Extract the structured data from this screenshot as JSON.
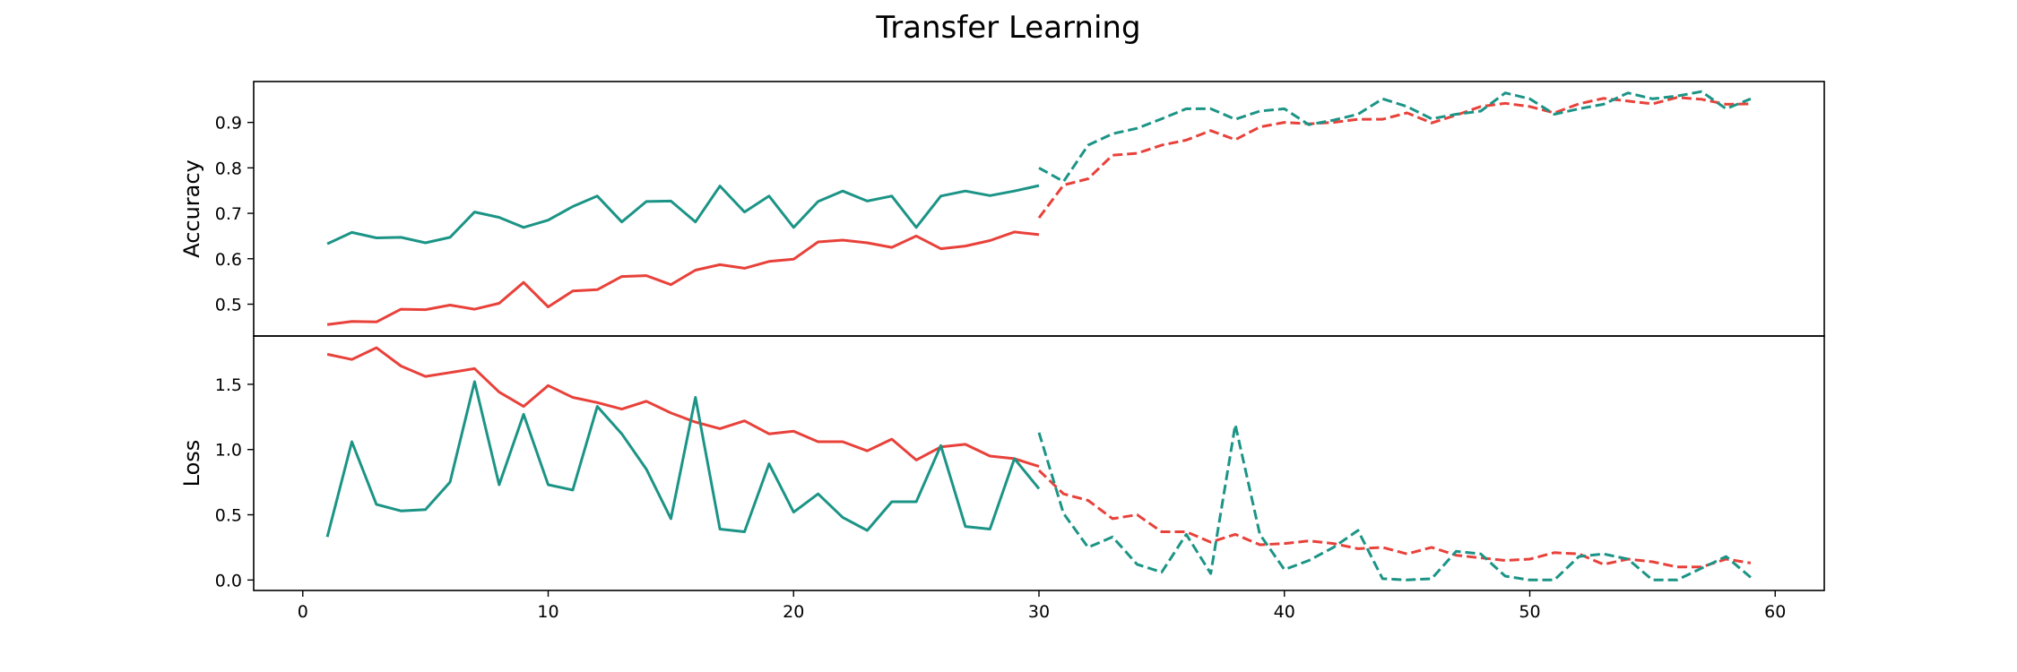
{
  "chart_data": {
    "type": "line",
    "title": "Transfer Learning",
    "colors": {
      "train": "#e8413a",
      "val": "#1b9486"
    },
    "xlim": [
      -2,
      62
    ],
    "xticks": [
      0,
      10,
      20,
      30,
      40,
      50,
      60
    ],
    "panels": [
      {
        "ylabel": "Accuracy",
        "ylim": [
          0.43,
          0.99
        ],
        "yticks": [
          0.5,
          0.6,
          0.7,
          0.8,
          0.9
        ],
        "series": [
          {
            "role": "train",
            "style": "solid",
            "x": [
              1,
              2,
              3,
              4,
              5,
              6,
              7,
              8,
              9,
              10,
              11,
              12,
              13,
              14,
              15,
              16,
              17,
              18,
              19,
              20,
              21,
              22,
              23,
              24,
              25,
              26,
              27,
              28,
              29,
              30
            ],
            "y": [
              0.455,
              0.462,
              0.461,
              0.489,
              0.488,
              0.498,
              0.489,
              0.502,
              0.548,
              0.494,
              0.529,
              0.532,
              0.561,
              0.563,
              0.543,
              0.575,
              0.587,
              0.579,
              0.594,
              0.599,
              0.637,
              0.641,
              0.635,
              0.625,
              0.65,
              0.622,
              0.628,
              0.64,
              0.659,
              0.653
            ]
          },
          {
            "role": "val",
            "style": "solid",
            "x": [
              1,
              2,
              3,
              4,
              5,
              6,
              7,
              8,
              9,
              10,
              11,
              12,
              13,
              14,
              15,
              16,
              17,
              18,
              19,
              20,
              21,
              22,
              23,
              24,
              25,
              26,
              27,
              28,
              29,
              30
            ],
            "y": [
              0.633,
              0.658,
              0.646,
              0.647,
              0.635,
              0.647,
              0.703,
              0.691,
              0.669,
              0.685,
              0.715,
              0.738,
              0.681,
              0.726,
              0.727,
              0.681,
              0.76,
              0.703,
              0.738,
              0.669,
              0.726,
              0.749,
              0.727,
              0.738,
              0.669,
              0.738,
              0.749,
              0.739,
              0.749,
              0.761
            ]
          },
          {
            "role": "train",
            "style": "dashed",
            "x": [
              30,
              31,
              32,
              33,
              34,
              35,
              36,
              37,
              38,
              39,
              40,
              41,
              42,
              43,
              44,
              45,
              46,
              47,
              48,
              49,
              50,
              51,
              52,
              53,
              54,
              55,
              56,
              57,
              58,
              59
            ],
            "y": [
              0.69,
              0.762,
              0.776,
              0.828,
              0.832,
              0.85,
              0.861,
              0.882,
              0.862,
              0.89,
              0.9,
              0.897,
              0.9,
              0.907,
              0.907,
              0.921,
              0.899,
              0.916,
              0.935,
              0.942,
              0.935,
              0.921,
              0.941,
              0.953,
              0.947,
              0.941,
              0.955,
              0.951,
              0.94,
              0.941
            ]
          },
          {
            "role": "val",
            "style": "dashed",
            "x": [
              30,
              31,
              32,
              33,
              34,
              35,
              36,
              37,
              38,
              39,
              40,
              41,
              42,
              43,
              44,
              45,
              46,
              47,
              48,
              49,
              50,
              51,
              52,
              53,
              54,
              55,
              56,
              57,
              58,
              59
            ],
            "y": [
              0.8,
              0.77,
              0.85,
              0.875,
              0.887,
              0.908,
              0.93,
              0.93,
              0.907,
              0.925,
              0.93,
              0.895,
              0.905,
              0.918,
              0.952,
              0.935,
              0.908,
              0.918,
              0.925,
              0.965,
              0.952,
              0.918,
              0.93,
              0.94,
              0.965,
              0.952,
              0.958,
              0.968,
              0.93,
              0.952
            ]
          }
        ]
      },
      {
        "ylabel": "Loss",
        "ylim": [
          -0.08,
          1.87
        ],
        "yticks": [
          0.0,
          0.5,
          1.0,
          1.5
        ],
        "series": [
          {
            "role": "train",
            "style": "solid",
            "x": [
              1,
              2,
              3,
              4,
              5,
              6,
              7,
              8,
              9,
              10,
              11,
              12,
              13,
              14,
              15,
              16,
              17,
              18,
              19,
              20,
              21,
              22,
              23,
              24,
              25,
              26,
              27,
              28,
              29,
              30
            ],
            "y": [
              1.73,
              1.69,
              1.78,
              1.64,
              1.56,
              1.59,
              1.62,
              1.44,
              1.33,
              1.49,
              1.4,
              1.36,
              1.31,
              1.37,
              1.28,
              1.21,
              1.16,
              1.22,
              1.12,
              1.14,
              1.06,
              1.06,
              0.99,
              1.08,
              0.92,
              1.02,
              1.04,
              0.95,
              0.93,
              0.87
            ]
          },
          {
            "role": "val",
            "style": "solid",
            "x": [
              1,
              2,
              3,
              4,
              5,
              6,
              7,
              8,
              9,
              10,
              11,
              12,
              13,
              14,
              15,
              16,
              17,
              18,
              19,
              20,
              21,
              22,
              23,
              24,
              25,
              26,
              27,
              28,
              29,
              30
            ],
            "y": [
              0.33,
              1.06,
              0.58,
              0.53,
              0.54,
              0.75,
              1.52,
              0.73,
              1.27,
              0.73,
              0.69,
              1.33,
              1.12,
              0.85,
              0.47,
              1.4,
              0.39,
              0.37,
              0.89,
              0.52,
              0.66,
              0.48,
              0.38,
              0.6,
              0.6,
              1.03,
              0.41,
              0.39,
              0.93,
              0.7
            ]
          },
          {
            "role": "train",
            "style": "dashed",
            "x": [
              30,
              31,
              32,
              33,
              34,
              35,
              36,
              37,
              38,
              39,
              40,
              41,
              42,
              43,
              44,
              45,
              46,
              47,
              48,
              49,
              50,
              51,
              52,
              53,
              54,
              55,
              56,
              57,
              58,
              59
            ],
            "y": [
              0.84,
              0.66,
              0.61,
              0.47,
              0.5,
              0.37,
              0.37,
              0.29,
              0.35,
              0.27,
              0.28,
              0.3,
              0.28,
              0.24,
              0.25,
              0.2,
              0.25,
              0.19,
              0.17,
              0.15,
              0.16,
              0.21,
              0.2,
              0.12,
              0.16,
              0.14,
              0.1,
              0.1,
              0.16,
              0.13
            ]
          },
          {
            "role": "val",
            "style": "dashed",
            "x": [
              30,
              31,
              32,
              33,
              34,
              35,
              36,
              37,
              38,
              39,
              40,
              41,
              42,
              43,
              44,
              45,
              46,
              47,
              48,
              49,
              50,
              51,
              52,
              53,
              54,
              55,
              56,
              57,
              58,
              59
            ],
            "y": [
              1.13,
              0.51,
              0.25,
              0.33,
              0.12,
              0.06,
              0.35,
              0.05,
              1.19,
              0.35,
              0.08,
              0.15,
              0.25,
              0.38,
              0.01,
              0.0,
              0.01,
              0.22,
              0.2,
              0.03,
              0.0,
              0.0,
              0.18,
              0.2,
              0.16,
              0.0,
              0.0,
              0.09,
              0.18,
              0.02
            ]
          }
        ]
      }
    ]
  }
}
